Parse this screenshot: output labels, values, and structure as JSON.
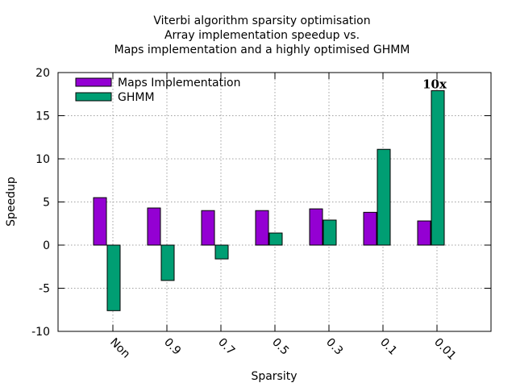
{
  "chart_data": {
    "type": "bar",
    "title_lines": [
      "Viterbi algorithm sparsity optimisation",
      "Array implementation speedup vs.",
      "Maps implementation and a highly optimised GHMM"
    ],
    "xlabel": "Sparsity",
    "ylabel": "Speedup",
    "ylim": [
      -10,
      20
    ],
    "yticks": [
      -10,
      -5,
      0,
      5,
      10,
      15,
      20
    ],
    "categories": [
      "Non",
      "0.9",
      "0.7",
      "0.5",
      "0.3",
      "0.1",
      "0.01"
    ],
    "series": [
      {
        "name": "Maps Implementation",
        "color": "#9400d3",
        "values": [
          5.5,
          4.3,
          4.0,
          4.0,
          4.2,
          3.8,
          2.8
        ]
      },
      {
        "name": "GHMM",
        "color": "#009e73",
        "values": [
          -7.6,
          -4.1,
          -1.6,
          1.4,
          2.9,
          11.1,
          17.9
        ]
      }
    ],
    "annotations": [
      {
        "text": "10x",
        "category": "0.01",
        "series": "GHMM"
      }
    ],
    "grid": true,
    "legend_position": "top-left"
  }
}
